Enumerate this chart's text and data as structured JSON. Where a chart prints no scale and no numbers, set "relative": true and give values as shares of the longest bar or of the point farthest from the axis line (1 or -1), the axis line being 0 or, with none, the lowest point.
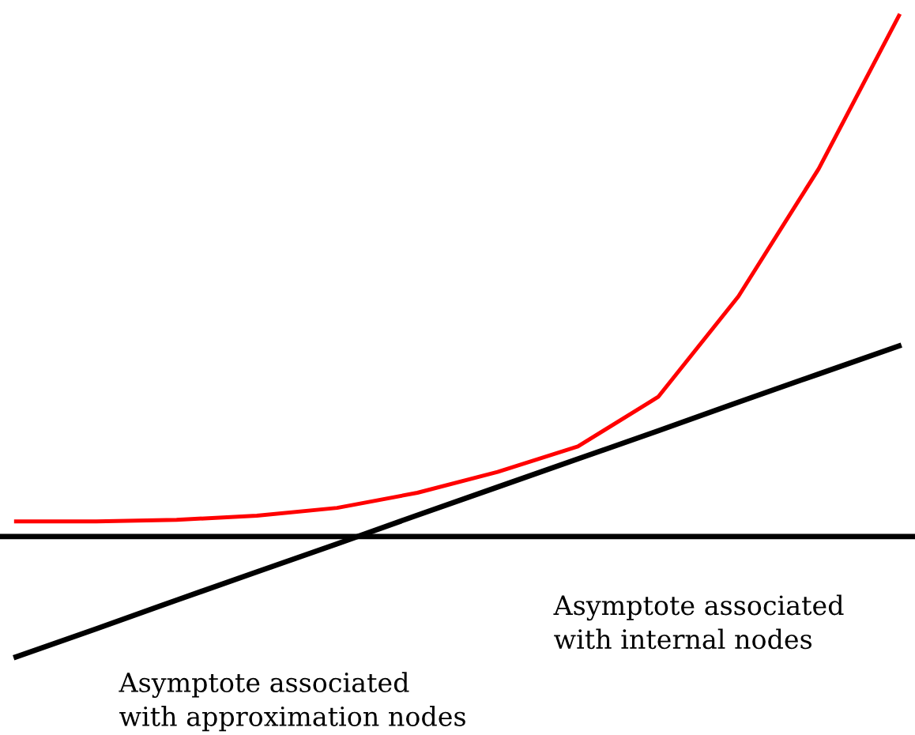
{
  "chart_data": {
    "type": "line",
    "relative": true,
    "categories": [
      null,
      null,
      null,
      null,
      null,
      null,
      null,
      null,
      null,
      null,
      null,
      null
    ],
    "series": [
      {
        "color": "#ff0000",
        "values": [
          0.029,
          0.029,
          0.032,
          0.04,
          0.055,
          0.084,
          0.124,
          0.173,
          0.268,
          0.461,
          0.706,
          1.0
        ]
      },
      {
        "color": "#000000",
        "values": [
          -0.231,
          -0.177,
          -0.122,
          -0.068,
          -0.014,
          0.041,
          0.095,
          0.149,
          0.203,
          0.258,
          0.312,
          0.366
        ]
      }
    ],
    "annotations": [
      "Asymptote associated\nwith internal nodes",
      "Asymptote associated\nwith approximation nodes"
    ],
    "legend": false,
    "marker": "none",
    "line_style": "solid"
  }
}
